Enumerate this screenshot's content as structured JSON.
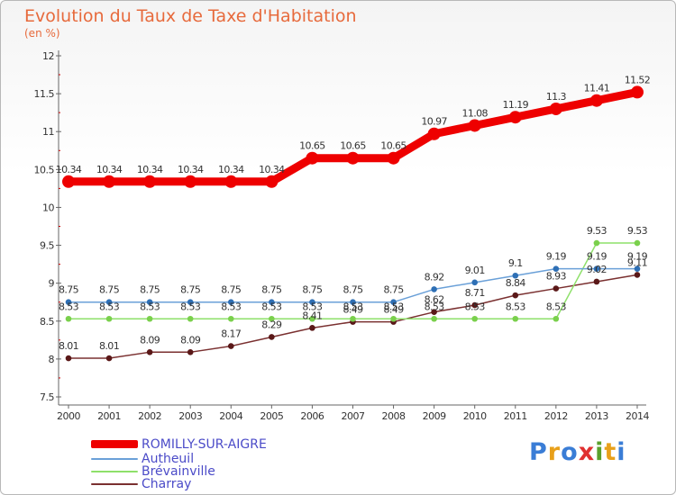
{
  "title": "Evolution du Taux de Taxe d'Habitation",
  "subtitle": "(en %)",
  "logo": {
    "text": "Proxiti",
    "letters": [
      "P",
      "r",
      "o",
      "x",
      "i",
      "t",
      "i"
    ],
    "colors": [
      "#3a7dd6",
      "#e8a01a",
      "#3a7dd6",
      "#e03030",
      "#5aa02c",
      "#e8a01a",
      "#3a7dd6"
    ]
  },
  "chart_data": {
    "type": "line",
    "title": "Evolution du Taux de Taxe d'Habitation",
    "ylabel": "(en %)",
    "ylim": [
      7.5,
      12
    ],
    "yticks": [
      "7.5",
      "8",
      "8.5",
      "9",
      "9.5",
      "10",
      "10.5",
      "11",
      "11.5",
      "12"
    ],
    "categories": [
      "2000",
      "2001",
      "2002",
      "2003",
      "2004",
      "2005",
      "2006",
      "2007",
      "2008",
      "2009",
      "2010",
      "2011",
      "2012",
      "2013",
      "2014"
    ],
    "series": [
      {
        "name": "ROMILLY-SUR-AIGRE",
        "color": "#ee0000",
        "width": 9,
        "marker": 7,
        "values": [
          10.34,
          10.34,
          10.34,
          10.34,
          10.34,
          10.34,
          10.65,
          10.65,
          10.65,
          10.97,
          11.08,
          11.19,
          11.3,
          11.41,
          11.52
        ],
        "labels": [
          "10.34",
          "10.34",
          "10.34",
          "10.34",
          "10.34",
          "10.34",
          "10.65",
          "10.65",
          "10.65",
          "10.97",
          "11.08",
          "11.19",
          "11.3",
          "11.41",
          "11.52"
        ]
      },
      {
        "name": "Autheuil",
        "color": "#6aa0d8",
        "marker_color": "#2e6fb5",
        "width": 1.5,
        "marker": 3.3,
        "values": [
          8.75,
          8.75,
          8.75,
          8.75,
          8.75,
          8.75,
          8.75,
          8.75,
          8.75,
          8.92,
          9.01,
          9.1,
          9.19,
          9.19,
          9.19
        ],
        "labels": [
          "8.75",
          "8.75",
          "8.75",
          "8.75",
          "8.75",
          "8.75",
          "8.75",
          "8.75",
          "8.75",
          "8.92",
          "9.01",
          "9.1",
          "9.19",
          "9.19",
          "9.19"
        ]
      },
      {
        "name": "Brévainville",
        "color": "#8ee06a",
        "marker_color": "#7ad04c",
        "width": 1.5,
        "marker": 3.3,
        "values": [
          8.53,
          8.53,
          8.53,
          8.53,
          8.53,
          8.53,
          8.53,
          8.53,
          8.53,
          8.53,
          8.53,
          8.53,
          8.53,
          9.53,
          9.53
        ],
        "labels": [
          "8.53",
          "8.53",
          "8.53",
          "8.53",
          "8.53",
          "8.53",
          "8.53",
          "8.53",
          "8.53",
          "8.53",
          "8.53",
          "8.53",
          "8.53",
          "9.53",
          "9.53"
        ]
      },
      {
        "name": "Charray",
        "color": "#7a3030",
        "marker_color": "#5a1818",
        "width": 1.5,
        "marker": 3.3,
        "values": [
          8.01,
          8.01,
          8.09,
          8.09,
          8.17,
          8.29,
          8.41,
          8.49,
          8.49,
          8.62,
          8.71,
          8.84,
          8.93,
          9.02,
          9.11
        ],
        "labels": [
          "8.01",
          "8.01",
          "8.09",
          "8.09",
          "8.17",
          "8.29",
          "8.41",
          "8.49",
          "8.49",
          "8.62",
          "8.71",
          "8.84",
          "8.93",
          "9.02",
          "9.11"
        ]
      }
    ]
  }
}
